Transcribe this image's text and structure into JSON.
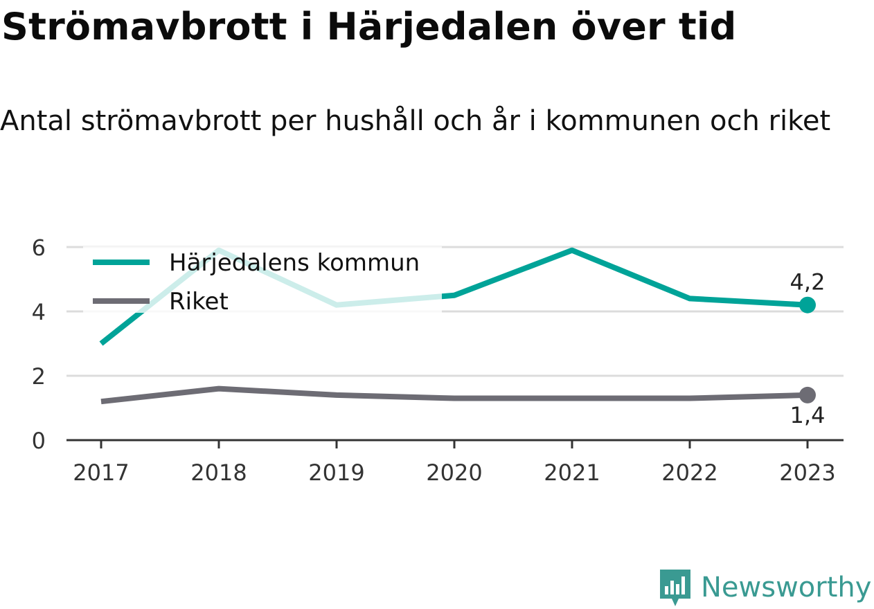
{
  "title": "Strömavbrott i Härjedalen över tid",
  "subtitle": "Antal strömavbrott per hushåll och år i kommunen och riket",
  "brand": {
    "name": "Newsworthy",
    "logo_icon": "newsworthy-chart-logo-icon",
    "color": "#3a9a92"
  },
  "chart_data": {
    "type": "line",
    "title": "Strömavbrott i Härjedalen över tid",
    "subtitle": "Antal strömavbrott per hushåll och år i kommunen och riket",
    "xlabel": "",
    "ylabel": "",
    "x": [
      "2017",
      "2018",
      "2019",
      "2020",
      "2021",
      "2022",
      "2023"
    ],
    "ylim": [
      0,
      6
    ],
    "yticks": [
      "0",
      "2",
      "4",
      "6"
    ],
    "grid": true,
    "legend_position": "top-left",
    "series": [
      {
        "name": "Härjedalens kommun",
        "color": "#00a398",
        "values": [
          3.0,
          5.9,
          4.2,
          4.5,
          5.9,
          4.4,
          4.2
        ],
        "end_label": "4,2"
      },
      {
        "name": "Riket",
        "color": "#6d6c74",
        "values": [
          1.2,
          1.6,
          1.4,
          1.3,
          1.3,
          1.3,
          1.4
        ],
        "end_label": "1,4"
      }
    ]
  }
}
